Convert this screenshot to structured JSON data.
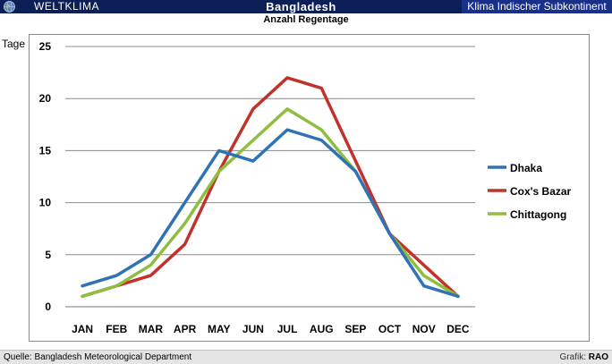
{
  "header": {
    "left_label": "WELTKLIMA",
    "center_title": "Bangladesh",
    "right_label": "Klima Indischer Subkontinent",
    "subtitle": "Anzahl Regentage"
  },
  "footer": {
    "source": "Quelle: Bangladesh Meteorological Department",
    "credit_prefix": "Grafik: ",
    "credit_name": "RAO"
  },
  "colors": {
    "header_bg": "#0d1f57",
    "header_right_bg": "#18308a",
    "dhaka": "#2f72b5",
    "coxs_bazar": "#c0322b",
    "chittagong": "#8fbd3e"
  },
  "chart_data": {
    "type": "line",
    "title": "Anzahl Regentage",
    "ylabel": "Tage",
    "xlabel": "",
    "categories": [
      "JAN",
      "FEB",
      "MAR",
      "APR",
      "MAY",
      "JUN",
      "JUL",
      "AUG",
      "SEP",
      "OCT",
      "NOV",
      "DEC"
    ],
    "ylim": [
      0,
      25
    ],
    "yticks": [
      0,
      5,
      10,
      15,
      20,
      25
    ],
    "grid": true,
    "legend_position": "right",
    "series": [
      {
        "name": "Dhaka",
        "color": "#2f72b5",
        "values": [
          2,
          3,
          5,
          10,
          15,
          14,
          17,
          16,
          13,
          7,
          2,
          1
        ]
      },
      {
        "name": "Cox's  Bazar",
        "color": "#c0322b",
        "values": [
          1,
          2,
          3,
          6,
          13,
          19,
          22,
          21,
          14,
          7,
          4,
          1
        ]
      },
      {
        "name": "Chittagong",
        "color": "#8fbd3e",
        "values": [
          1,
          2,
          4,
          8,
          13,
          16,
          19,
          17,
          13,
          7,
          3,
          1
        ]
      }
    ]
  }
}
